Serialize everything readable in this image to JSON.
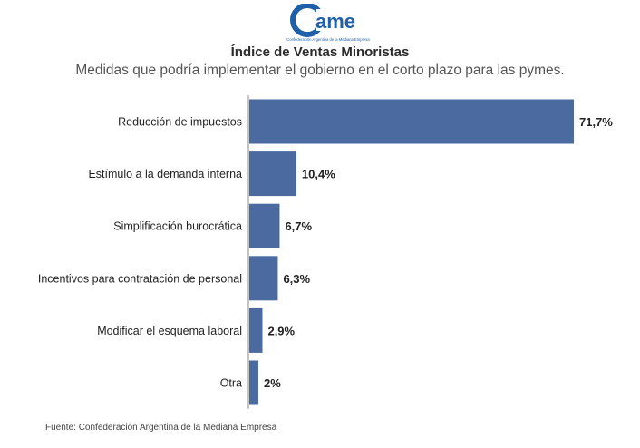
{
  "logo": {
    "wordmark": "ame",
    "tagline": "Confederación Argentina de la Mediana Empresa"
  },
  "header": {
    "title": "Índice de Ventas Minoristas",
    "subtitle": "Medidas que podría implementar el gobierno en el corto plazo para las pymes."
  },
  "chart_data": {
    "type": "bar",
    "orientation": "horizontal",
    "categories": [
      "Reducción de impuestos",
      "Estímulo a la demanda interna",
      "Simplificación burocrática",
      "Incentivos para contratación de personal",
      "Modificar el esquema laboral",
      "Otra"
    ],
    "values": [
      71.7,
      10.4,
      6.7,
      6.3,
      2.9,
      2
    ],
    "value_labels": [
      "71,7%",
      "10,4%",
      "6,7%",
      "6,3%",
      "2,9%",
      "2%"
    ],
    "title": "Índice de Ventas Minoristas",
    "xlabel": "",
    "ylabel": "",
    "xlim": [
      0,
      71.7
    ],
    "grid": false,
    "legend": "none",
    "bar_color": "#4a6aa0"
  },
  "footer": {
    "source": "Fuente: Confederación Argentina de la Mediana Empresa"
  },
  "colors": {
    "brand": "#1f5fa8",
    "bar": "#4a6aa0",
    "axis": "#888888"
  }
}
